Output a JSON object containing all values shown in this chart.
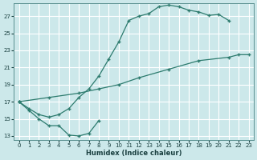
{
  "bg_color": "#cce8ea",
  "grid_color": "#b0d8da",
  "line_color": "#2d7b6e",
  "xlabel": "Humidex (Indice chaleur)",
  "ylim": [
    12.5,
    28.5
  ],
  "xlim": [
    -0.5,
    23.5
  ],
  "yticks": [
    13,
    15,
    17,
    19,
    21,
    23,
    25,
    27
  ],
  "xticks": [
    0,
    1,
    2,
    3,
    4,
    5,
    6,
    7,
    8,
    9,
    10,
    11,
    12,
    13,
    14,
    15,
    16,
    17,
    18,
    19,
    20,
    21,
    22,
    23
  ],
  "curve_upper_x": [
    0,
    1,
    2,
    3,
    4,
    5,
    6,
    7,
    8,
    9,
    10,
    11,
    12,
    13,
    14,
    15,
    16,
    17,
    18,
    19,
    20,
    21
  ],
  "curve_upper_y": [
    17.0,
    16.2,
    15.5,
    15.2,
    15.5,
    16.2,
    17.5,
    18.5,
    20.0,
    22.0,
    24.0,
    26.5,
    27.0,
    27.3,
    28.1,
    28.3,
    28.1,
    27.7,
    27.5,
    27.1,
    27.2,
    26.5
  ],
  "curve_lower_x": [
    0,
    1,
    2,
    3,
    4,
    5,
    6,
    7,
    8
  ],
  "curve_lower_y": [
    17.0,
    16.0,
    15.0,
    14.2,
    14.2,
    13.1,
    13.0,
    13.3,
    14.8
  ],
  "curve_diag_x": [
    0,
    3,
    6,
    8,
    10,
    12,
    15,
    18,
    21,
    22,
    23
  ],
  "curve_diag_y": [
    17.0,
    17.5,
    18.0,
    18.5,
    19.0,
    19.8,
    20.8,
    21.8,
    22.2,
    22.5,
    22.5
  ]
}
